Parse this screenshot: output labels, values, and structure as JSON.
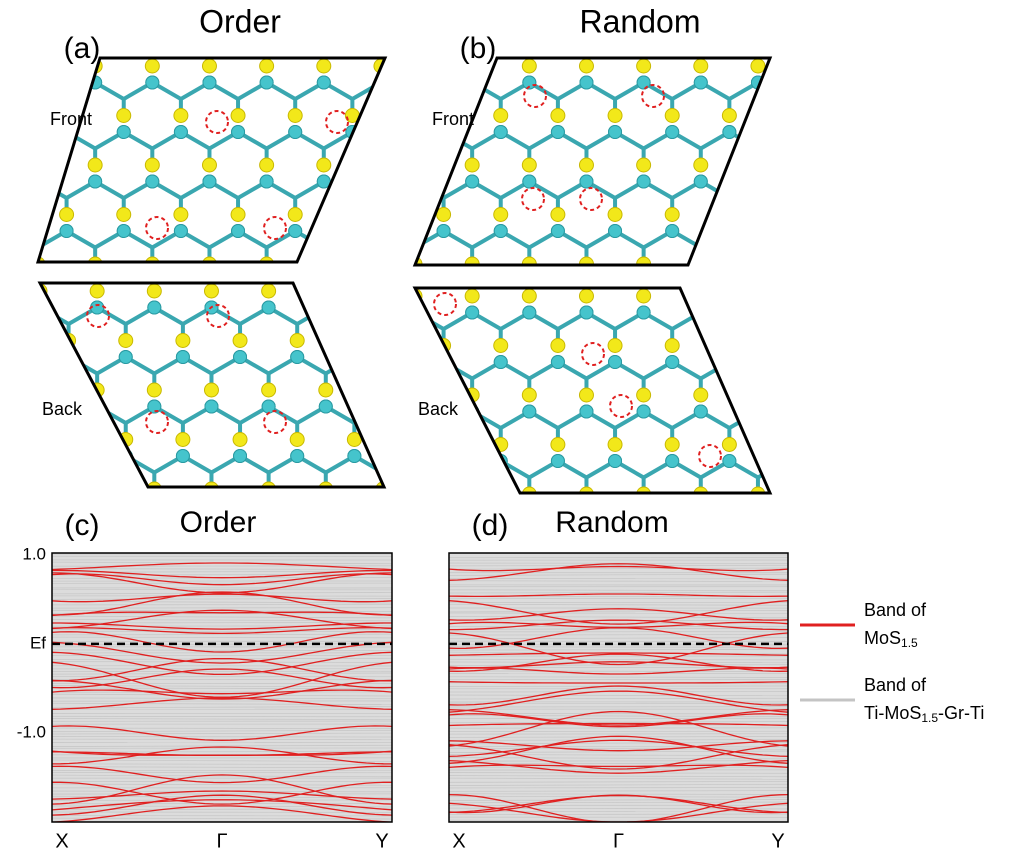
{
  "panels": {
    "a": {
      "label": "(a)",
      "title": "Order",
      "front": "Front",
      "back": "Back"
    },
    "b": {
      "label": "(b)",
      "title": "Random",
      "front": "Front",
      "back": "Back"
    },
    "c": {
      "label": "(c)",
      "title": "Order",
      "xticks": [
        "X",
        "Γ",
        "Y"
      ],
      "ylim": [
        -2.0,
        1.02
      ],
      "yticks": [
        {
          "value": 1.0,
          "label": "1.0"
        },
        {
          "value": 0,
          "label": "Ef"
        },
        {
          "value": -1.0,
          "label": "-1.0"
        }
      ]
    },
    "d": {
      "label": "(d)",
      "title": "Random",
      "xticks": [
        "X",
        "Γ",
        "Y"
      ],
      "ylim": [
        -2.0,
        1.02
      ]
    }
  },
  "legend": [
    {
      "color": "#e02020",
      "line1": "Band of",
      "line2": [
        "MoS",
        "1.5"
      ]
    },
    {
      "color": "#c4c4c4",
      "line1": "Band of",
      "line2": [
        "Ti-MoS",
        "1.5",
        "-Gr-Ti"
      ]
    }
  ]
}
